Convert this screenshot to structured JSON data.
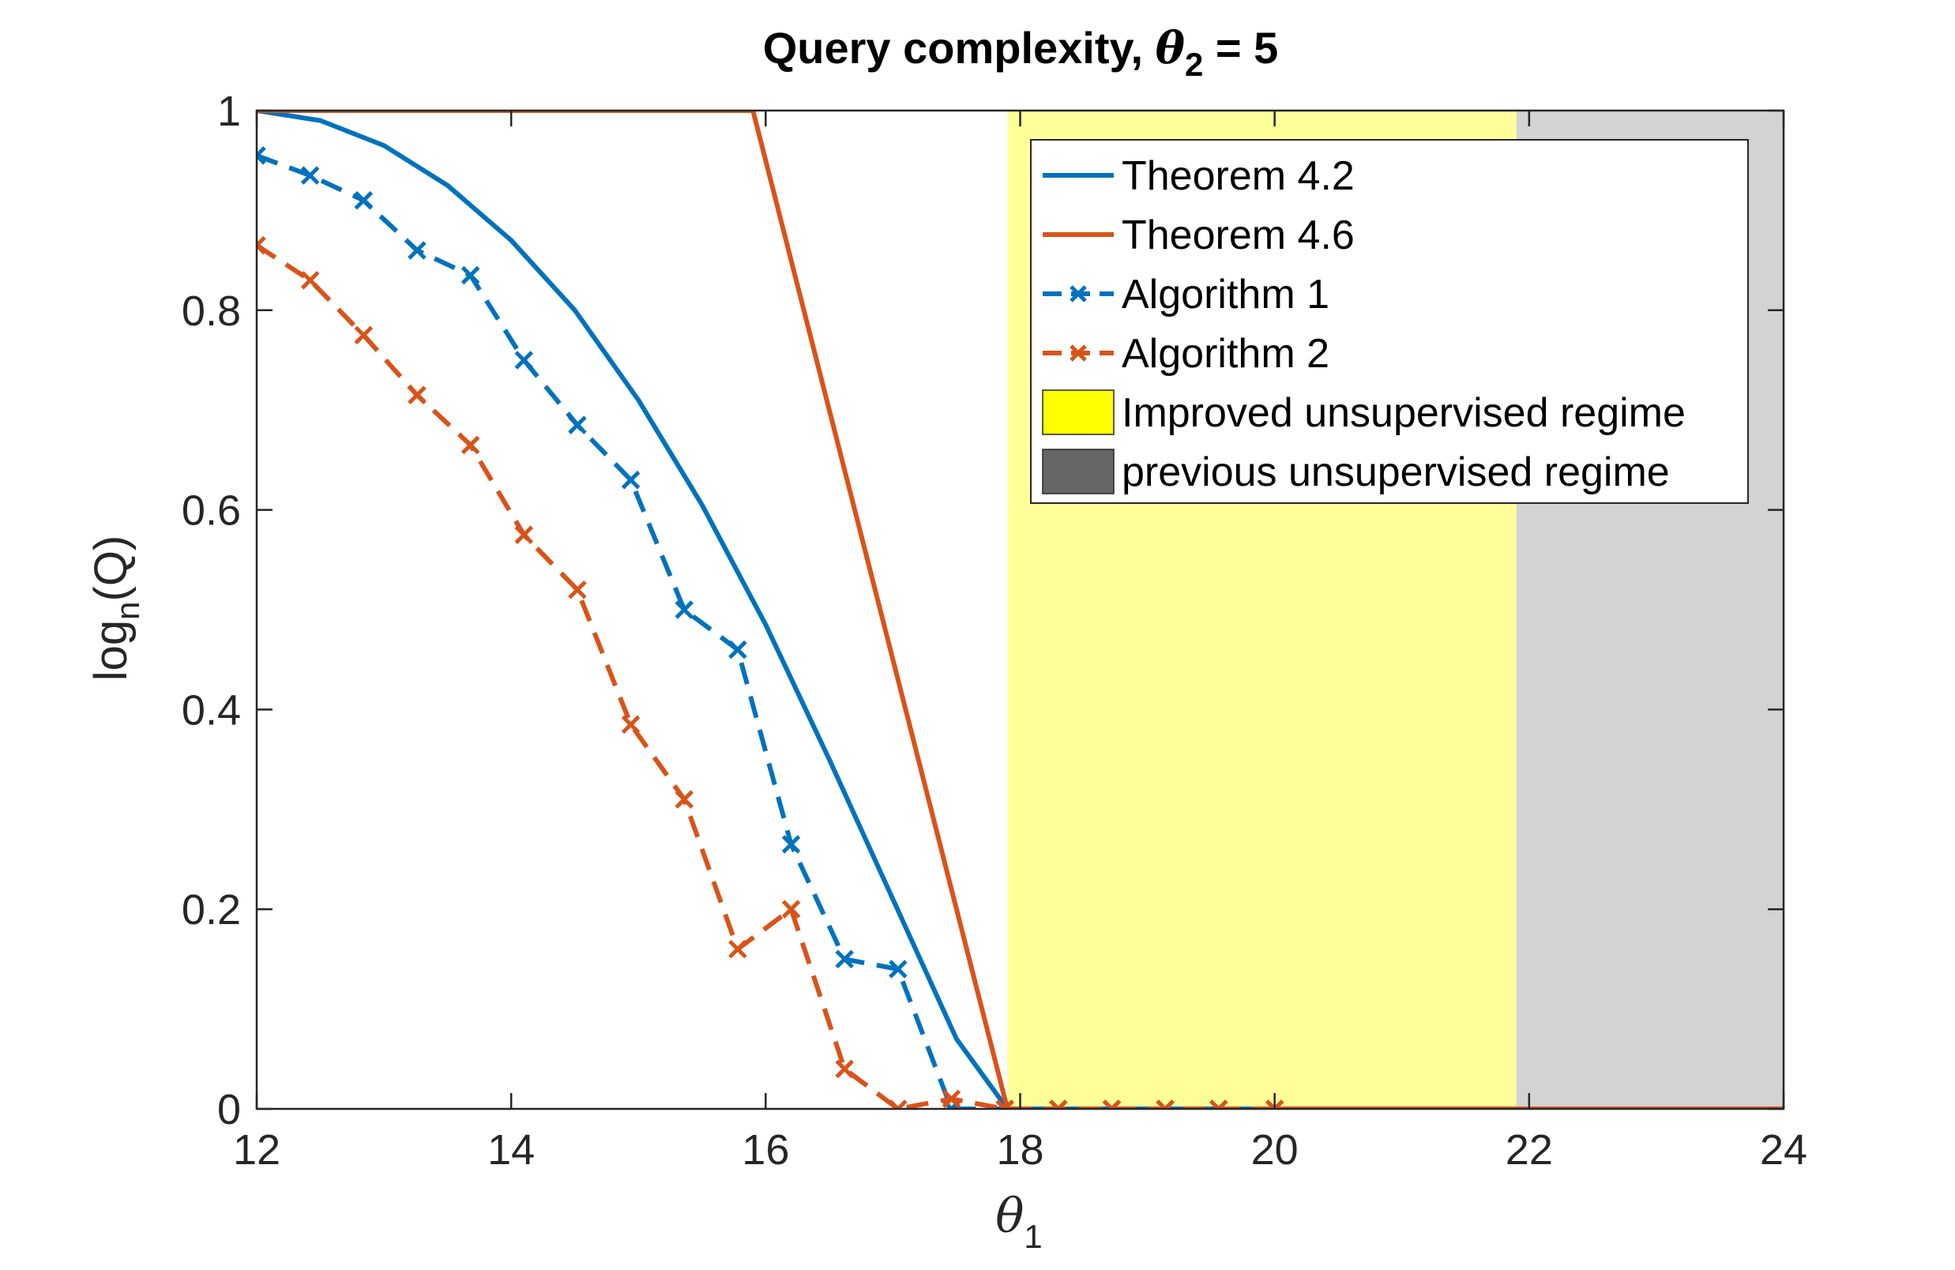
{
  "chart_data": {
    "type": "line",
    "title": {
      "prefix": "Query complexity, ",
      "symbol": "θ",
      "subscript": "2",
      "suffix": " = 5"
    },
    "xlabel": {
      "symbol": "θ",
      "subscript": "1"
    },
    "ylabel": {
      "base": "log",
      "subscript": "n",
      "suffix": "(Q)"
    },
    "xlim": [
      12,
      24
    ],
    "ylim": [
      0,
      1
    ],
    "xticks": [
      12,
      14,
      16,
      18,
      20,
      22,
      24
    ],
    "xtick_labels": [
      "12",
      "14",
      "16",
      "18",
      "20",
      "22",
      "24"
    ],
    "yticks": [
      0,
      0.2,
      0.4,
      0.6,
      0.8,
      1
    ],
    "ytick_labels": [
      "0",
      "0.2",
      "0.4",
      "0.6",
      "0.8",
      "1"
    ],
    "grid": false,
    "legend_position": "top-right",
    "regions": [
      {
        "name": "Improved unsupervised regime",
        "x": [
          17.9,
          21.9
        ],
        "color": "#ffff99",
        "legend_color": "#ffff00"
      },
      {
        "name": "previous unsupervised regime",
        "x": [
          21.9,
          24
        ],
        "color": "#d3d3d3",
        "legend_color": "#666666"
      }
    ],
    "series": [
      {
        "name": "Theorem 4.2",
        "color": "#0072bd",
        "style": "solid",
        "marker": "none",
        "x": [
          12,
          12.5,
          13,
          13.5,
          14,
          14.5,
          15,
          15.5,
          16,
          16.5,
          17,
          17.5,
          17.9,
          24
        ],
        "y": [
          1,
          0.99,
          0.965,
          0.925,
          0.87,
          0.8,
          0.71,
          0.605,
          0.485,
          0.35,
          0.21,
          0.07,
          0,
          0
        ]
      },
      {
        "name": "Theorem 4.6",
        "color": "#d95319",
        "style": "solid",
        "marker": "none",
        "x": [
          12,
          15.9,
          17.9,
          24
        ],
        "y": [
          1,
          1,
          0,
          0
        ]
      },
      {
        "name": "Algorithm 1",
        "color": "#0072bd",
        "style": "dashed",
        "marker": "x",
        "x": [
          12,
          12.42,
          12.84,
          13.26,
          13.68,
          14.1,
          14.52,
          14.94,
          15.36,
          15.78,
          16.2,
          16.62,
          17.04,
          17.46,
          17.88,
          18.3,
          18.72,
          19.14,
          19.56,
          20
        ],
        "y": [
          0.955,
          0.935,
          0.91,
          0.86,
          0.835,
          0.75,
          0.685,
          0.63,
          0.5,
          0.46,
          0.265,
          0.15,
          0.14,
          0,
          0,
          0,
          0,
          0,
          0,
          0
        ]
      },
      {
        "name": "Algorithm 2",
        "color": "#d95319",
        "style": "dashed",
        "marker": "x",
        "x": [
          12,
          12.42,
          12.84,
          13.26,
          13.68,
          14.1,
          14.52,
          14.94,
          15.36,
          15.78,
          16.2,
          16.62,
          17.04,
          17.46,
          17.88,
          18.3,
          18.72,
          19.14,
          19.56,
          20
        ],
        "y": [
          0.865,
          0.83,
          0.775,
          0.715,
          0.665,
          0.575,
          0.52,
          0.385,
          0.31,
          0.16,
          0.2,
          0.04,
          0,
          0.01,
          0,
          0,
          0,
          0,
          0,
          0
        ]
      }
    ]
  }
}
